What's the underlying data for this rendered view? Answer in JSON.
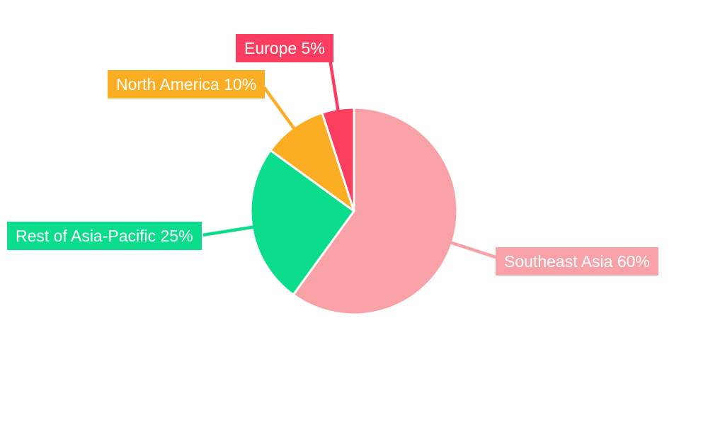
{
  "chart_data": {
    "type": "pie",
    "title": "",
    "unit": "%",
    "slices": [
      {
        "name": "Southeast Asia",
        "value": 60,
        "label": "Southeast Asia 60%",
        "color": "#F8A2A8"
      },
      {
        "name": "Rest of Asia-Pacific",
        "value": 25,
        "label": "Rest of Asia-Pacific 25%",
        "color": "#0CDD8D"
      },
      {
        "name": "North America",
        "value": 10,
        "label": "North America 10%",
        "color": "#FBAD24"
      },
      {
        "name": "Europe",
        "value": 5,
        "label": "Europe 5%",
        "color": "#FB3D60"
      }
    ],
    "start_angle_deg": 0,
    "direction": "clockwise",
    "slice_border_color": "#FFFFFF",
    "label_text_color": "#FFFFFF",
    "background": "#FFFFFF",
    "legend": "none"
  }
}
